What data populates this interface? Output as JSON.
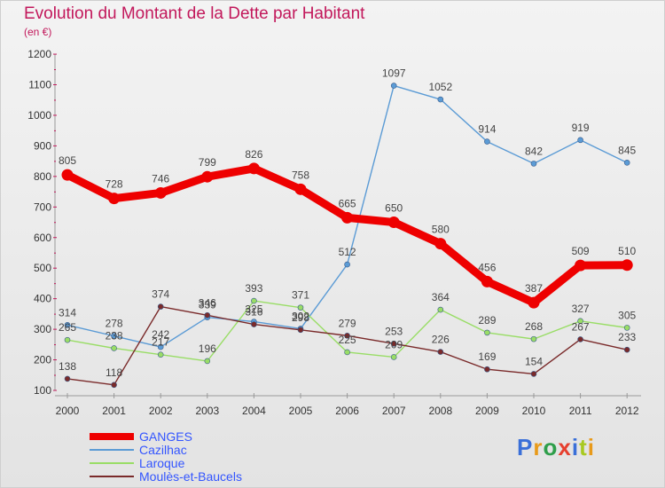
{
  "title": "Evolution du Montant de la Dette par Habitant",
  "subtitle": "(en €)",
  "logo": {
    "text": "Proxiti",
    "colors": [
      "#3a6fd8",
      "#e89a1a",
      "#2e9e4a",
      "#e63f2e",
      "#3a6fd8",
      "#a8c920",
      "#e89a1a"
    ]
  },
  "chart_data": {
    "type": "line",
    "title": "Evolution du Montant de la Dette par Habitant",
    "ylabel": "(en €)",
    "xlabel": "",
    "x": [
      "2000",
      "2001",
      "2002",
      "2003",
      "2004",
      "2005",
      "2006",
      "2007",
      "2008",
      "2009",
      "2010",
      "2011",
      "2012"
    ],
    "ylim": [
      100,
      1200
    ],
    "yticks": [
      100,
      200,
      300,
      400,
      500,
      600,
      700,
      800,
      900,
      1000,
      1100,
      1200
    ],
    "grid": false,
    "legend": "bottom-left",
    "series": [
      {
        "name": "GANGES",
        "color": "#ee0000",
        "values": [
          805,
          728,
          746,
          799,
          826,
          758,
          665,
          650,
          580,
          456,
          387,
          509,
          510
        ]
      },
      {
        "name": "Cazilhac",
        "color": "#5b9bd5",
        "values": [
          314,
          278,
          242,
          339,
          325,
          302,
          512,
          1097,
          1052,
          914,
          842,
          919,
          845
        ]
      },
      {
        "name": "Laroque",
        "color": "#99dd66",
        "values": [
          265,
          238,
          217,
          196,
          393,
          371,
          225,
          209,
          364,
          289,
          268,
          327,
          305
        ]
      },
      {
        "name": "Moulès-et-Baucels",
        "color": "#7a2a2a",
        "values": [
          138,
          118,
          374,
          346,
          316,
          298,
          279,
          253,
          226,
          169,
          154,
          267,
          233
        ]
      }
    ]
  }
}
